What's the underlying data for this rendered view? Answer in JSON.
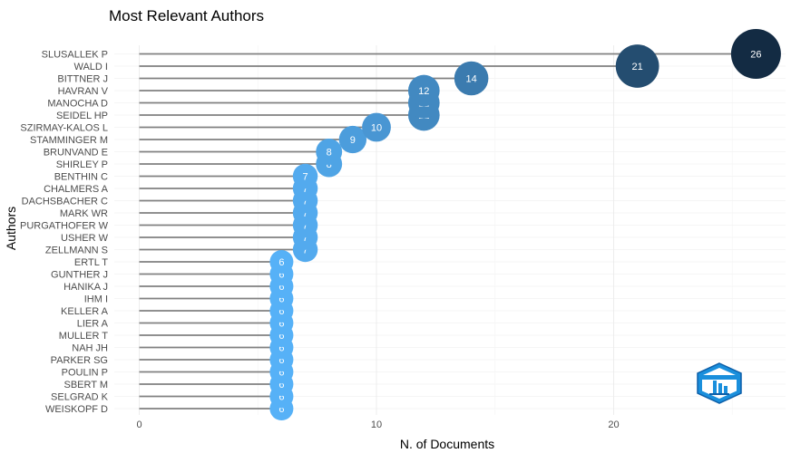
{
  "chart_data": {
    "type": "scatter",
    "title": "Most Relevant Authors",
    "xlabel": "N. of Documents",
    "ylabel": "Authors",
    "xlim": [
      0,
      27
    ],
    "xticks": [
      0,
      10,
      20
    ],
    "grid": true,
    "legend": "none",
    "categories": [
      "SLUSALLEK P",
      "WALD I",
      "BITTNER J",
      "HAVRAN V",
      "MANOCHA D",
      "SEIDEL HP",
      "SZIRMAY-KALOS L",
      "STAMMINGER M",
      "BRUNVAND E",
      "SHIRLEY P",
      "BENTHIN C",
      "CHALMERS A",
      "DACHSBACHER C",
      "MARK WR",
      "PURGATHOFER W",
      "USHER W",
      "ZELLMANN S",
      "ERTL T",
      "GUNTHER J",
      "HANIKA J",
      "IHM I",
      "KELLER A",
      "LIER A",
      "MULLER T",
      "NAH JH",
      "PARKER SG",
      "POULIN P",
      "SBERT M",
      "SELGRAD K",
      "WEISKOPF D"
    ],
    "values": [
      26,
      21,
      14,
      12,
      12,
      12,
      10,
      9,
      8,
      8,
      7,
      7,
      7,
      7,
      7,
      7,
      7,
      6,
      6,
      6,
      6,
      6,
      6,
      6,
      6,
      6,
      6,
      6,
      6,
      6
    ],
    "colors": {
      "low": "#56b1f7",
      "high": "#132b43",
      "stem": "#808080"
    }
  }
}
